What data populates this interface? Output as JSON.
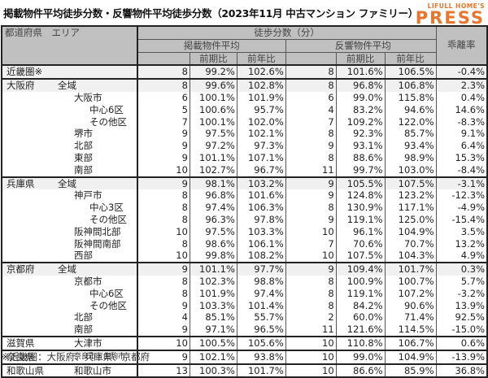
{
  "title": "掲載物件平均徒歩分数・反響物件平均徒歩分数（2023年11月 中古マンション ファミリー）",
  "logo": {
    "top": "LIFULL HOME'S",
    "bottom": "PRESS",
    "color": "#e8762c"
  },
  "table": {
    "corner_label": "都道府県　エリア",
    "group_header": "徒歩分数（分）",
    "listing_header": "掲載物件平均",
    "inquiry_header": "反響物件平均",
    "divergence_header": "乖離率",
    "qoq_label": "前期比",
    "yoy_label": "前年比",
    "qoq_label2": "前期比",
    "yoy_label2": "前年比",
    "rows": [
      {
        "pref": "近畿圏※",
        "area": "",
        "level": 0,
        "l_min": "8",
        "l_qoq": "99.2%",
        "l_yoy": "102.6%",
        "i_min": "8",
        "i_qoq": "101.6%",
        "i_yoy": "106.5%",
        "div": "-0.4%"
      },
      {
        "pref": "大阪府",
        "area": "全域",
        "level": 1,
        "l_min": "8",
        "l_qoq": "99.6%",
        "l_yoy": "102.8%",
        "i_min": "8",
        "i_qoq": "96.8%",
        "i_yoy": "106.8%",
        "div": "2.3%"
      },
      {
        "pref": "",
        "area": "大阪市",
        "level": 2,
        "l_min": "6",
        "l_qoq": "100.1%",
        "l_yoy": "101.9%",
        "i_min": "6",
        "i_qoq": "99.0%",
        "i_yoy": "115.8%",
        "div": "0.4%"
      },
      {
        "pref": "",
        "area": "中心6区",
        "level": 3,
        "l_min": "5",
        "l_qoq": "100.6%",
        "l_yoy": "95.7%",
        "i_min": "4",
        "i_qoq": "83.2%",
        "i_yoy": "94.6%",
        "div": "14.6%"
      },
      {
        "pref": "",
        "area": "その他区",
        "level": 3,
        "l_min": "7",
        "l_qoq": "100.1%",
        "l_yoy": "102.0%",
        "i_min": "7",
        "i_qoq": "109.2%",
        "i_yoy": "122.0%",
        "div": "-8.3%"
      },
      {
        "pref": "",
        "area": "堺市",
        "level": 2,
        "l_min": "9",
        "l_qoq": "97.5%",
        "l_yoy": "102.1%",
        "i_min": "8",
        "i_qoq": "92.3%",
        "i_yoy": "85.7%",
        "div": "9.1%"
      },
      {
        "pref": "",
        "area": "北部",
        "level": 2,
        "l_min": "9",
        "l_qoq": "97.2%",
        "l_yoy": "97.3%",
        "i_min": "9",
        "i_qoq": "93.1%",
        "i_yoy": "93.4%",
        "div": "6.4%"
      },
      {
        "pref": "",
        "area": "東部",
        "level": 2,
        "l_min": "9",
        "l_qoq": "101.1%",
        "l_yoy": "107.1%",
        "i_min": "8",
        "i_qoq": "88.6%",
        "i_yoy": "98.9%",
        "div": "15.3%"
      },
      {
        "pref": "",
        "area": "南部",
        "level": 2,
        "l_min": "10",
        "l_qoq": "102.7%",
        "l_yoy": "96.7%",
        "i_min": "11",
        "i_qoq": "99.7%",
        "i_yoy": "103.0%",
        "div": "-8.4%"
      },
      {
        "pref": "兵庫県",
        "area": "全域",
        "level": 1,
        "l_min": "9",
        "l_qoq": "98.1%",
        "l_yoy": "103.2%",
        "i_min": "9",
        "i_qoq": "105.5%",
        "i_yoy": "107.5%",
        "div": "-3.1%"
      },
      {
        "pref": "",
        "area": "神戸市",
        "level": 2,
        "l_min": "8",
        "l_qoq": "96.8%",
        "l_yoy": "101.6%",
        "i_min": "9",
        "i_qoq": "124.8%",
        "i_yoy": "123.2%",
        "div": "-12.3%"
      },
      {
        "pref": "",
        "area": "中心3区",
        "level": 3,
        "l_min": "8",
        "l_qoq": "97.4%",
        "l_yoy": "106.3%",
        "i_min": "8",
        "i_qoq": "130.9%",
        "i_yoy": "117.1%",
        "div": "-4.9%"
      },
      {
        "pref": "",
        "area": "その他区",
        "level": 3,
        "l_min": "8",
        "l_qoq": "96.3%",
        "l_yoy": "97.8%",
        "i_min": "9",
        "i_qoq": "119.1%",
        "i_yoy": "125.0%",
        "div": "-15.4%"
      },
      {
        "pref": "",
        "area": "阪神間北部",
        "level": 2,
        "l_min": "10",
        "l_qoq": "97.5%",
        "l_yoy": "103.3%",
        "i_min": "10",
        "i_qoq": "96.1%",
        "i_yoy": "104.9%",
        "div": "3.5%"
      },
      {
        "pref": "",
        "area": "阪神間南部",
        "level": 2,
        "l_min": "8",
        "l_qoq": "98.6%",
        "l_yoy": "106.1%",
        "i_min": "7",
        "i_qoq": "70.6%",
        "i_yoy": "70.7%",
        "div": "13.2%"
      },
      {
        "pref": "",
        "area": "西部",
        "level": 2,
        "l_min": "10",
        "l_qoq": "99.8%",
        "l_yoy": "108.2%",
        "i_min": "10",
        "i_qoq": "107.5%",
        "i_yoy": "104.3%",
        "div": "4.9%"
      },
      {
        "pref": "京都府",
        "area": "全域",
        "level": 1,
        "l_min": "9",
        "l_qoq": "101.1%",
        "l_yoy": "97.7%",
        "i_min": "9",
        "i_qoq": "109.4%",
        "i_yoy": "101.7%",
        "div": "0.3%"
      },
      {
        "pref": "",
        "area": "京都市",
        "level": 2,
        "l_min": "8",
        "l_qoq": "102.3%",
        "l_yoy": "98.8%",
        "i_min": "8",
        "i_qoq": "100.9%",
        "i_yoy": "100.7%",
        "div": "5.7%"
      },
      {
        "pref": "",
        "area": "中心6区",
        "level": 3,
        "l_min": "8",
        "l_qoq": "101.9%",
        "l_yoy": "97.4%",
        "i_min": "8",
        "i_qoq": "119.1%",
        "i_yoy": "107.2%",
        "div": "-3.2%"
      },
      {
        "pref": "",
        "area": "その他区",
        "level": 3,
        "l_min": "9",
        "l_qoq": "103.3%",
        "l_yoy": "101.4%",
        "i_min": "8",
        "i_qoq": "84.2%",
        "i_yoy": "90.6%",
        "div": "13.9%"
      },
      {
        "pref": "",
        "area": "北部",
        "level": 2,
        "l_min": "4",
        "l_qoq": "85.1%",
        "l_yoy": "55.7%",
        "i_min": "2",
        "i_qoq": "60.0%",
        "i_yoy": "71.4%",
        "div": "92.5%"
      },
      {
        "pref": "",
        "area": "南部",
        "level": 2,
        "l_min": "9",
        "l_qoq": "97.1%",
        "l_yoy": "96.5%",
        "i_min": "11",
        "i_qoq": "121.6%",
        "i_yoy": "114.5%",
        "div": "-15.0%"
      },
      {
        "pref": "滋賀県",
        "area": "大津市",
        "level": 2,
        "l_min": "10",
        "l_qoq": "100.5%",
        "l_yoy": "105.6%",
        "i_min": "10",
        "i_qoq": "110.8%",
        "i_yoy": "106.7%",
        "div": "0.6%"
      },
      {
        "pref": "奈良県",
        "area": "奈良市・生駒市",
        "level": 2,
        "l_min": "9",
        "l_qoq": "102.1%",
        "l_yoy": "93.8%",
        "i_min": "10",
        "i_qoq": "99.0%",
        "i_yoy": "104.9%",
        "div": "-13.9%"
      },
      {
        "pref": "和歌山県",
        "area": "和歌山市",
        "level": 2,
        "l_min": "13",
        "l_qoq": "100.3%",
        "l_yoy": "101.7%",
        "i_min": "10",
        "i_qoq": "86.6%",
        "i_yoy": "85.9%",
        "div": "36.8%"
      }
    ]
  },
  "footnote": "※近畿圏：大阪府、兵庫県、京都府"
}
